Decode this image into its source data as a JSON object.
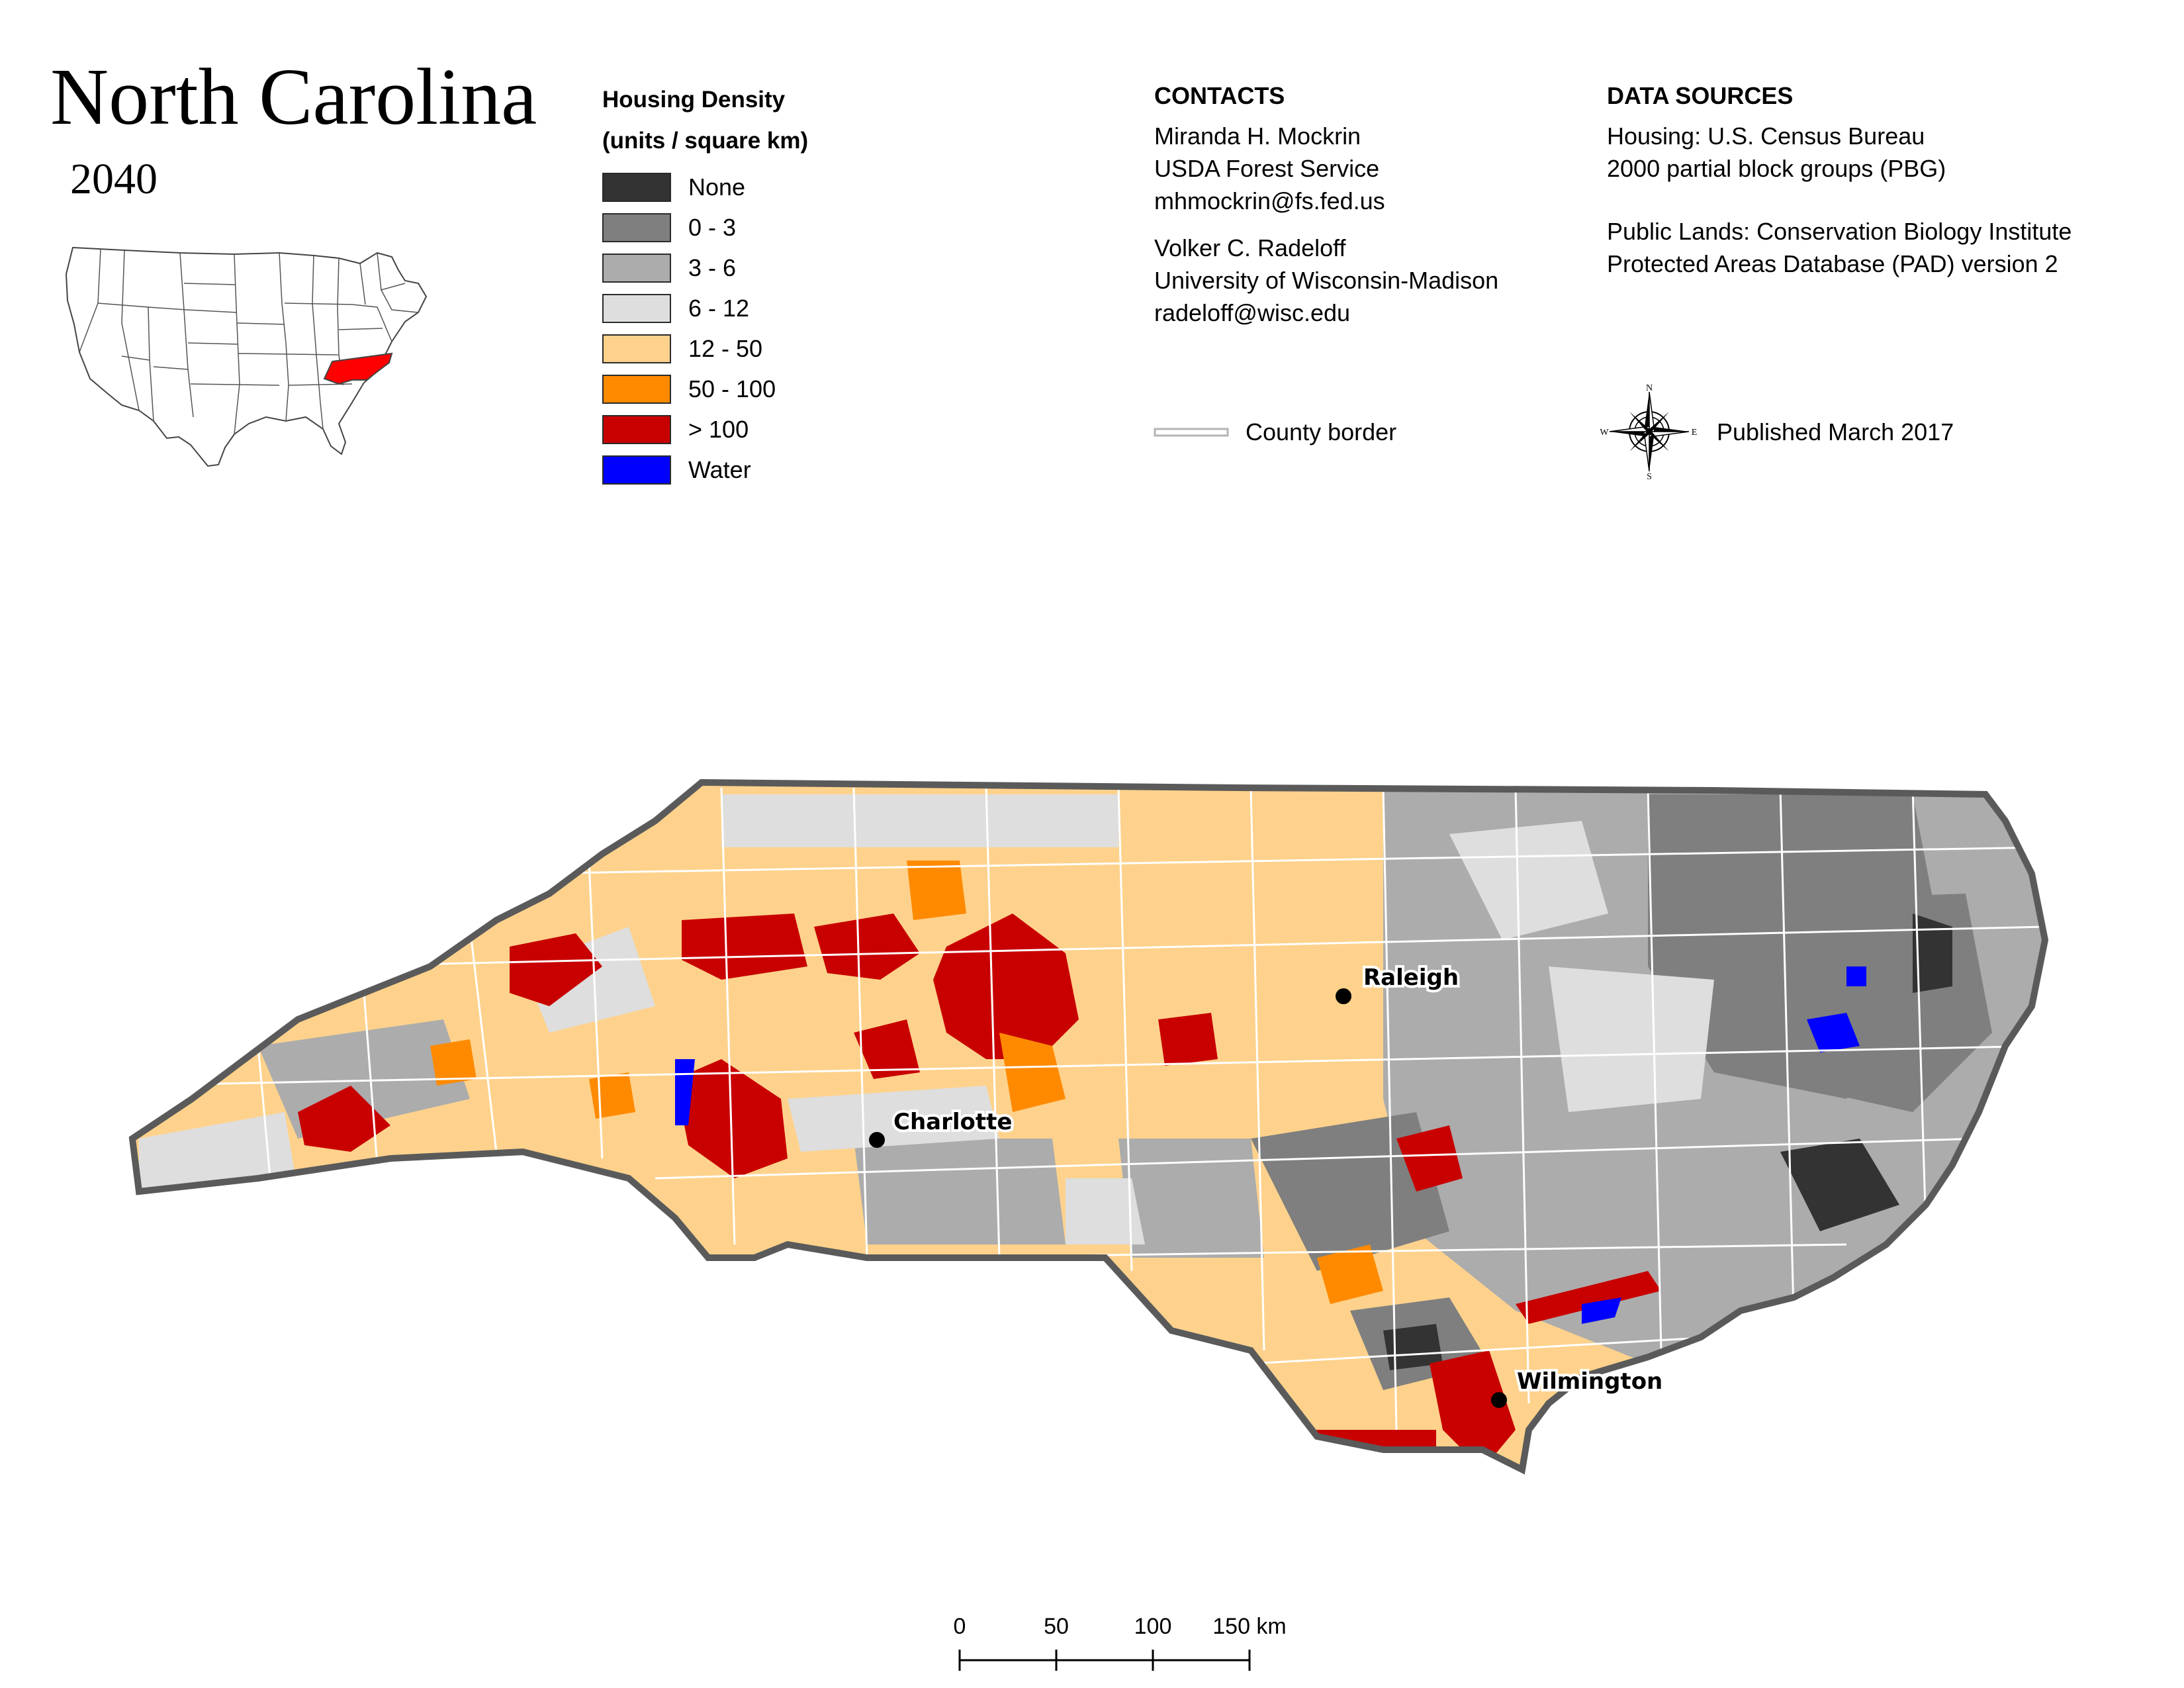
{
  "title": "North Carolina",
  "year": "2040",
  "legend": {
    "title_line1": "Housing Density",
    "title_line2": "(units / square km)",
    "classes": [
      {
        "label": "None",
        "color": "#333333"
      },
      {
        "label": "0 - 3",
        "color": "#7f7f7f"
      },
      {
        "label": "3 - 6",
        "color": "#acacac"
      },
      {
        "label": "6 - 12",
        "color": "#dedede"
      },
      {
        "label": "12 - 50",
        "color": "#fed28c"
      },
      {
        "label": "50 - 100",
        "color": "#ff8a00"
      },
      {
        "label": "> 100",
        "color": "#c80000"
      },
      {
        "label": "Water",
        "color": "#0000ff"
      }
    ]
  },
  "contacts": {
    "heading": "CONTACTS",
    "person1": {
      "name": "Miranda H. Mockrin",
      "org": "USDA Forest Service",
      "email": "mhmockrin@fs.fed.us"
    },
    "person2": {
      "name": "Volker C. Radeloff",
      "org": "University of Wisconsin-Madison",
      "email": "radeloff@wisc.edu"
    }
  },
  "sources": {
    "heading": "DATA SOURCES",
    "housing_line1": "Housing: U.S. Census Bureau",
    "housing_line2": "2000 partial block groups (PBG)",
    "lands_line1": "Public Lands: Conservation Biology Institute",
    "lands_line2": "Protected Areas Database (PAD) version 2"
  },
  "county_border_label": "County border",
  "published": "Published March 2017",
  "compass": {
    "n": "N",
    "s": "S",
    "e": "E",
    "w": "W"
  },
  "cities": {
    "charlotte": "Charlotte",
    "raleigh": "Raleigh",
    "wilmington": "Wilmington"
  },
  "scalebar": {
    "ticks": [
      "0",
      "50",
      "100",
      "150 km"
    ]
  },
  "colors": {
    "state_outline": "#5a5a5a",
    "county_border": "#ffffff",
    "inset_highlight": "#ff0000"
  }
}
